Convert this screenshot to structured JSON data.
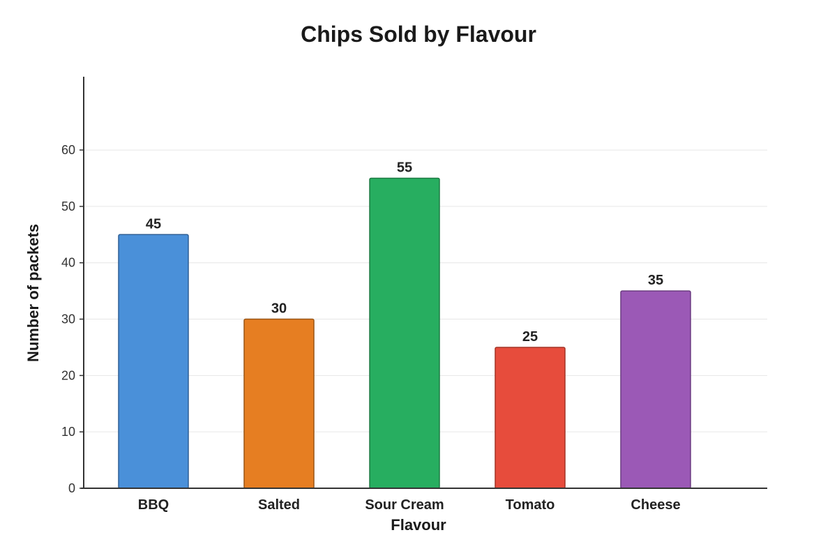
{
  "chart_data": {
    "type": "bar",
    "title": "Chips Sold by Flavour",
    "xlabel": "Flavour",
    "ylabel": "Number of packets",
    "categories": [
      "BBQ",
      "Salted",
      "Sour Cream",
      "Tomato",
      "Cheese"
    ],
    "values": [
      45,
      30,
      55,
      25,
      35
    ],
    "colors": [
      "#4a90d9",
      "#e67e22",
      "#27ae60",
      "#e74c3c",
      "#9b59b6"
    ],
    "edge_colors": [
      "#2e5f95",
      "#9a5616",
      "#1d7a43",
      "#a33527",
      "#6b3b80"
    ],
    "ylim": [
      0,
      73
    ],
    "yticks": [
      0,
      10,
      20,
      30,
      40,
      50,
      60
    ],
    "grid": true,
    "legend": "none"
  }
}
